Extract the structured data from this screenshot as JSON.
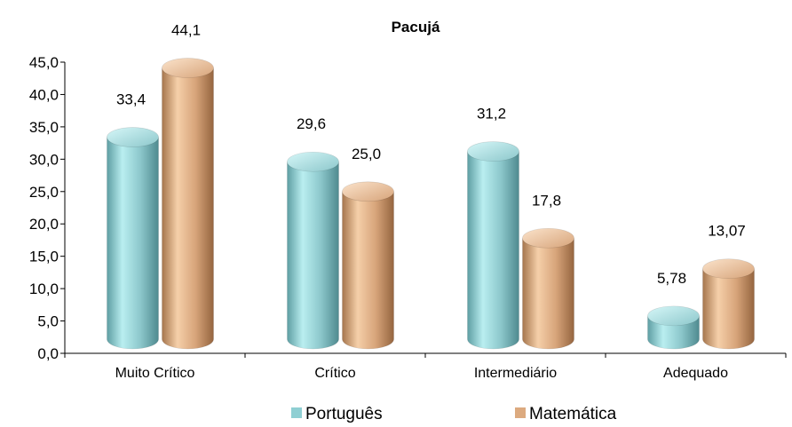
{
  "chart_data": {
    "type": "bar",
    "style": "3d-cylinder",
    "title": "Pacujá",
    "categories": [
      "Muito Crítico",
      "Crítico",
      "Intermediário",
      "Adequado"
    ],
    "series": [
      {
        "name": "Português",
        "values": [
          33.4,
          29.6,
          31.2,
          5.78
        ],
        "labels": [
          "33,4",
          "29,6",
          "31,2",
          "5,78"
        ],
        "color": "#8fcfd3"
      },
      {
        "name": "Matemática",
        "values": [
          44.1,
          25.0,
          17.8,
          13.07
        ],
        "labels": [
          "44,1",
          "25,0",
          "17,8",
          "13,07"
        ],
        "color": "#dcaa7f"
      }
    ],
    "ylim": [
      0,
      45
    ],
    "yticks": [
      "0,0",
      "5,0",
      "10,0",
      "15,0",
      "20,0",
      "25,0",
      "30,0",
      "35,0",
      "40,0",
      "45,0"
    ],
    "xlabel": "",
    "ylabel": "",
    "grid": false,
    "legend_position": "bottom"
  }
}
